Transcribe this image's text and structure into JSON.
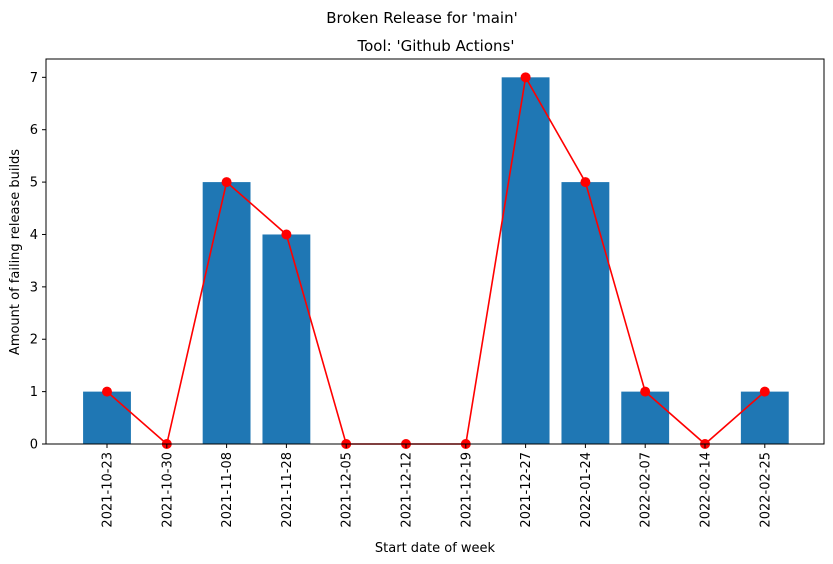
{
  "chart_data": {
    "type": "bar",
    "suptitle": "Broken Release for 'main'",
    "title": "Tool: 'Github Actions'",
    "xlabel": "Start date of week",
    "ylabel": "Amount of failing release builds",
    "categories": [
      "2021-10-23",
      "2021-10-30",
      "2021-11-08",
      "2021-11-28",
      "2021-12-05",
      "2021-12-12",
      "2021-12-19",
      "2021-12-27",
      "2022-01-24",
      "2022-02-07",
      "2022-02-14",
      "2022-02-25"
    ],
    "series": [
      {
        "type": "bar",
        "values": [
          1,
          0,
          5,
          4,
          0,
          0,
          0,
          7,
          5,
          1,
          0,
          1
        ],
        "color": "#1f77b4"
      },
      {
        "type": "line",
        "values": [
          1,
          0,
          5,
          4,
          0,
          0,
          0,
          7,
          5,
          1,
          0,
          1
        ],
        "color": "#ff0000",
        "marker": "circle"
      }
    ],
    "ylim": [
      0,
      7.35
    ],
    "yticks": [
      0,
      1,
      2,
      3,
      4,
      5,
      6,
      7
    ],
    "grid": false,
    "legend": "none"
  }
}
